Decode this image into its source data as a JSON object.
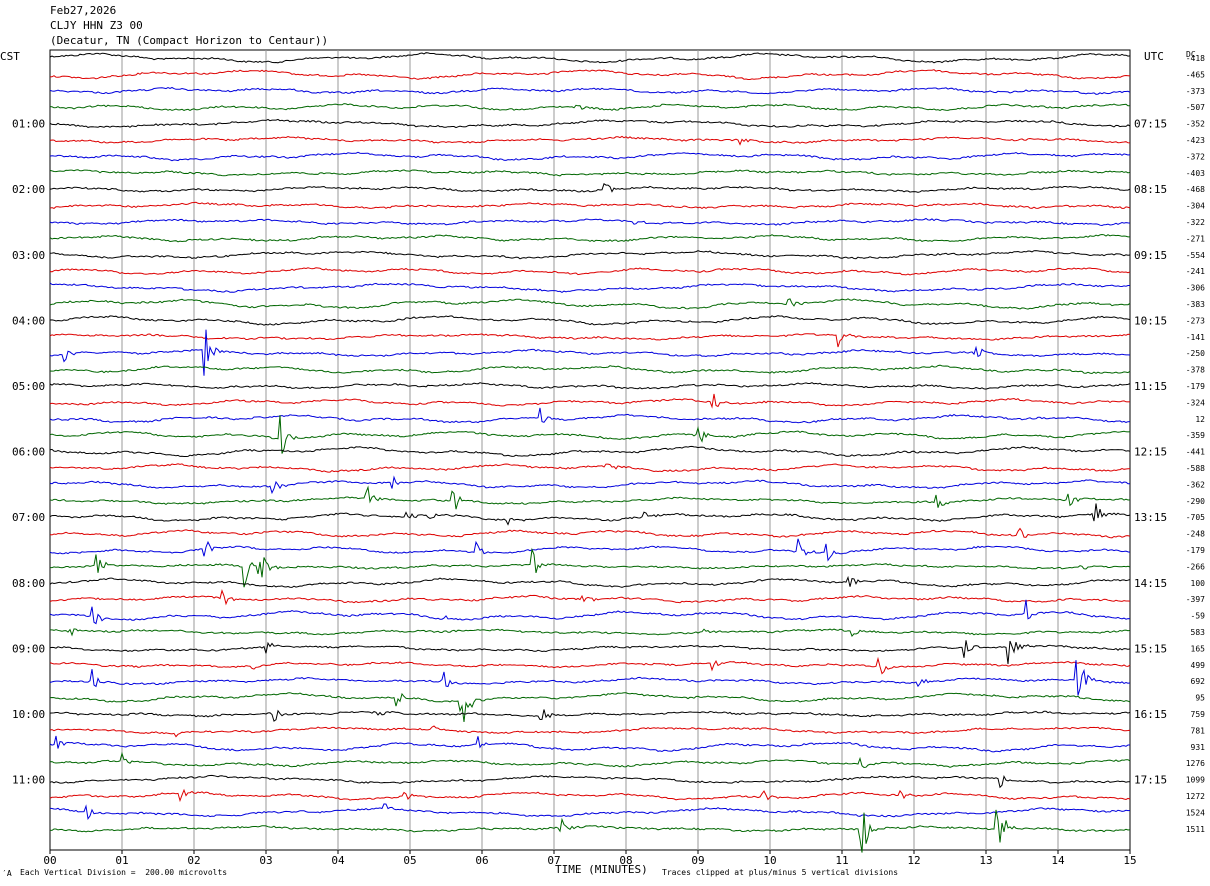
{
  "header": {
    "date": "Feb27,2026",
    "station": "CLJY HHN Z3 00",
    "location": "(Decatur, TN (Compact Horizon to Centaur))"
  },
  "left_axis_title": "CST",
  "right_axis_title": "UTC",
  "dc_title": "DC",
  "footer": {
    "scale_note": "Each Vertical Division =  200.00 microvolts",
    "xlabel": "TIME (MINUTES)",
    "clip_note": "Traces clipped at plus/minus 5 vertical divisions",
    "corner_mark": "′A"
  },
  "colors": {
    "black": "#000000",
    "red": "#dd0000",
    "blue": "#0000dd",
    "green": "#006600",
    "grid": "#9a9a9a"
  },
  "chart_data": {
    "type": "line",
    "title": "CLJY HHN Z3 00",
    "xlabel": "TIME (MINUTES)",
    "x_ticks": [
      "00",
      "01",
      "02",
      "03",
      "04",
      "05",
      "06",
      "07",
      "08",
      "09",
      "10",
      "11",
      "12",
      "13",
      "14",
      "15"
    ],
    "xlim": [
      0,
      15
    ],
    "trace_count": 48,
    "trace_colors": [
      "black",
      "red",
      "blue",
      "green"
    ],
    "trace_color_cycle": "black, red, blue, green",
    "left_time_labels": [
      {
        "trace": 4,
        "label": "01:00"
      },
      {
        "trace": 8,
        "label": "02:00"
      },
      {
        "trace": 12,
        "label": "03:00"
      },
      {
        "trace": 16,
        "label": "04:00"
      },
      {
        "trace": 20,
        "label": "05:00"
      },
      {
        "trace": 24,
        "label": "06:00"
      },
      {
        "trace": 28,
        "label": "07:00"
      },
      {
        "trace": 32,
        "label": "08:00"
      },
      {
        "trace": 36,
        "label": "09:00"
      },
      {
        "trace": 40,
        "label": "10:00"
      },
      {
        "trace": 44,
        "label": "11:00"
      }
    ],
    "right_time_labels": [
      {
        "trace": 4,
        "label": "07:15"
      },
      {
        "trace": 8,
        "label": "08:15"
      },
      {
        "trace": 12,
        "label": "09:15"
      },
      {
        "trace": 16,
        "label": "10:15"
      },
      {
        "trace": 20,
        "label": "11:15"
      },
      {
        "trace": 24,
        "label": "12:15"
      },
      {
        "trace": 28,
        "label": "13:15"
      },
      {
        "trace": 32,
        "label": "14:15"
      },
      {
        "trace": 36,
        "label": "15:15"
      },
      {
        "trace": 40,
        "label": "16:15"
      },
      {
        "trace": 44,
        "label": "17:15"
      }
    ],
    "dc_offsets": [
      "-418",
      "-465",
      "-373",
      "-507",
      "-352",
      "-423",
      "-372",
      "-403",
      "-468",
      "-304",
      "-322",
      "-271",
      "-554",
      "-241",
      "-306",
      "-383",
      "-273",
      "-141",
      "-250",
      "-378",
      "-179",
      "-324",
      "12",
      "-359",
      "-441",
      "-588",
      "-362",
      "-290",
      "-705",
      "-248",
      "-179",
      "-266",
      "100",
      "-397",
      "-59",
      "583",
      "165",
      "499",
      "692",
      "95",
      "759",
      "781",
      "931",
      "1276",
      "1099",
      "1272",
      "1524",
      "1511"
    ],
    "events": [
      {
        "trace": 3,
        "minute": 7.3,
        "amp": 0.4
      },
      {
        "trace": 5,
        "minute": 9.6,
        "amp": 0.3
      },
      {
        "trace": 8,
        "minute": 7.7,
        "amp": 0.6
      },
      {
        "trace": 10,
        "minute": 8.1,
        "amp": 0.5
      },
      {
        "trace": 18,
        "minute": 0.2,
        "amp": 1.0
      },
      {
        "trace": 18,
        "minute": 2.15,
        "amp": 2.5
      },
      {
        "trace": 18,
        "minute": 12.85,
        "amp": 0.8
      },
      {
        "trace": 17,
        "minute": 10.95,
        "amp": 0.8
      },
      {
        "trace": 15,
        "minute": 10.25,
        "amp": 0.9
      },
      {
        "trace": 21,
        "minute": 9.2,
        "amp": 1.0
      },
      {
        "trace": 22,
        "minute": 6.8,
        "amp": 0.8
      },
      {
        "trace": 23,
        "minute": 3.2,
        "amp": 1.8
      },
      {
        "trace": 23,
        "minute": 9.0,
        "amp": 0.8
      },
      {
        "trace": 25,
        "minute": 7.7,
        "amp": 0.9
      },
      {
        "trace": 26,
        "minute": 3.05,
        "amp": 1.0
      },
      {
        "trace": 26,
        "minute": 4.75,
        "amp": 0.6
      },
      {
        "trace": 27,
        "minute": 4.4,
        "amp": 1.0
      },
      {
        "trace": 27,
        "minute": 5.6,
        "amp": 0.8
      },
      {
        "trace": 27,
        "minute": 12.3,
        "amp": 1.0
      },
      {
        "trace": 27,
        "minute": 14.15,
        "amp": 0.9
      },
      {
        "trace": 28,
        "minute": 4.95,
        "amp": 0.5
      },
      {
        "trace": 28,
        "minute": 5.25,
        "amp": 0.5
      },
      {
        "trace": 28,
        "minute": 6.3,
        "amp": 0.7
      },
      {
        "trace": 28,
        "minute": 8.25,
        "amp": 0.4
      },
      {
        "trace": 28,
        "minute": 14.5,
        "amp": 1.2
      },
      {
        "trace": 29,
        "minute": 13.45,
        "amp": 0.6
      },
      {
        "trace": 30,
        "minute": 2.15,
        "amp": 0.9
      },
      {
        "trace": 30,
        "minute": 5.9,
        "amp": 0.9
      },
      {
        "trace": 30,
        "minute": 10.4,
        "amp": 1.0
      },
      {
        "trace": 30,
        "minute": 10.75,
        "amp": 0.9
      },
      {
        "trace": 31,
        "minute": 0.65,
        "amp": 0.9
      },
      {
        "trace": 31,
        "minute": 2.7,
        "amp": 2.2
      },
      {
        "trace": 31,
        "minute": 2.9,
        "amp": 2.2
      },
      {
        "trace": 31,
        "minute": 6.7,
        "amp": 1.0
      },
      {
        "trace": 31,
        "minute": 14.3,
        "amp": 0.4
      },
      {
        "trace": 32,
        "minute": 11.1,
        "amp": 0.8
      },
      {
        "trace": 33,
        "minute": 2.4,
        "amp": 0.6
      },
      {
        "trace": 33,
        "minute": 7.4,
        "amp": 0.5
      },
      {
        "trace": 34,
        "minute": 0.6,
        "amp": 0.8
      },
      {
        "trace": 34,
        "minute": 5.5,
        "amp": 0.4
      },
      {
        "trace": 34,
        "minute": 13.55,
        "amp": 0.9
      },
      {
        "trace": 35,
        "minute": 0.25,
        "amp": 0.6
      },
      {
        "trace": 35,
        "minute": 9.05,
        "amp": 0.6
      },
      {
        "trace": 35,
        "minute": 11.15,
        "amp": 0.5
      },
      {
        "trace": 36,
        "minute": 3.0,
        "amp": 0.5
      },
      {
        "trace": 36,
        "minute": 12.7,
        "amp": 0.8
      },
      {
        "trace": 36,
        "minute": 13.3,
        "amp": 2.0
      },
      {
        "trace": 37,
        "minute": 2.8,
        "amp": 0.4
      },
      {
        "trace": 37,
        "minute": 9.2,
        "amp": 0.6
      },
      {
        "trace": 37,
        "minute": 11.5,
        "amp": 1.0
      },
      {
        "trace": 38,
        "minute": 0.6,
        "amp": 0.8
      },
      {
        "trace": 38,
        "minute": 5.45,
        "amp": 1.0
      },
      {
        "trace": 38,
        "minute": 12.05,
        "amp": 0.5
      },
      {
        "trace": 38,
        "minute": 14.25,
        "amp": 3.0
      },
      {
        "trace": 39,
        "minute": 4.8,
        "amp": 0.8
      },
      {
        "trace": 39,
        "minute": 5.7,
        "amp": 3.0
      },
      {
        "trace": 40,
        "minute": 3.1,
        "amp": 0.6
      },
      {
        "trace": 40,
        "minute": 4.55,
        "amp": 0.4
      },
      {
        "trace": 40,
        "minute": 6.8,
        "amp": 0.8
      },
      {
        "trace": 41,
        "minute": 1.7,
        "amp": 0.4
      },
      {
        "trace": 41,
        "minute": 5.3,
        "amp": 0.5
      },
      {
        "trace": 42,
        "minute": 0.1,
        "amp": 0.5
      },
      {
        "trace": 42,
        "minute": 5.95,
        "amp": 0.5
      },
      {
        "trace": 43,
        "minute": 1.0,
        "amp": 0.6
      },
      {
        "trace": 43,
        "minute": 11.25,
        "amp": 0.5
      },
      {
        "trace": 44,
        "minute": 13.2,
        "amp": 0.6
      },
      {
        "trace": 45,
        "minute": 1.8,
        "amp": 0.6
      },
      {
        "trace": 45,
        "minute": 4.9,
        "amp": 0.4
      },
      {
        "trace": 45,
        "minute": 9.9,
        "amp": 0.6
      },
      {
        "trace": 45,
        "minute": 11.8,
        "amp": 0.6
      },
      {
        "trace": 46,
        "minute": 0.5,
        "amp": 0.7
      },
      {
        "trace": 46,
        "minute": 4.65,
        "amp": 0.4
      },
      {
        "trace": 47,
        "minute": 7.1,
        "amp": 0.6
      },
      {
        "trace": 47,
        "minute": 11.25,
        "amp": 3.0
      },
      {
        "trace": 47,
        "minute": 13.15,
        "amp": 3.0
      }
    ],
    "clip_divisions": 5,
    "grid": true
  }
}
